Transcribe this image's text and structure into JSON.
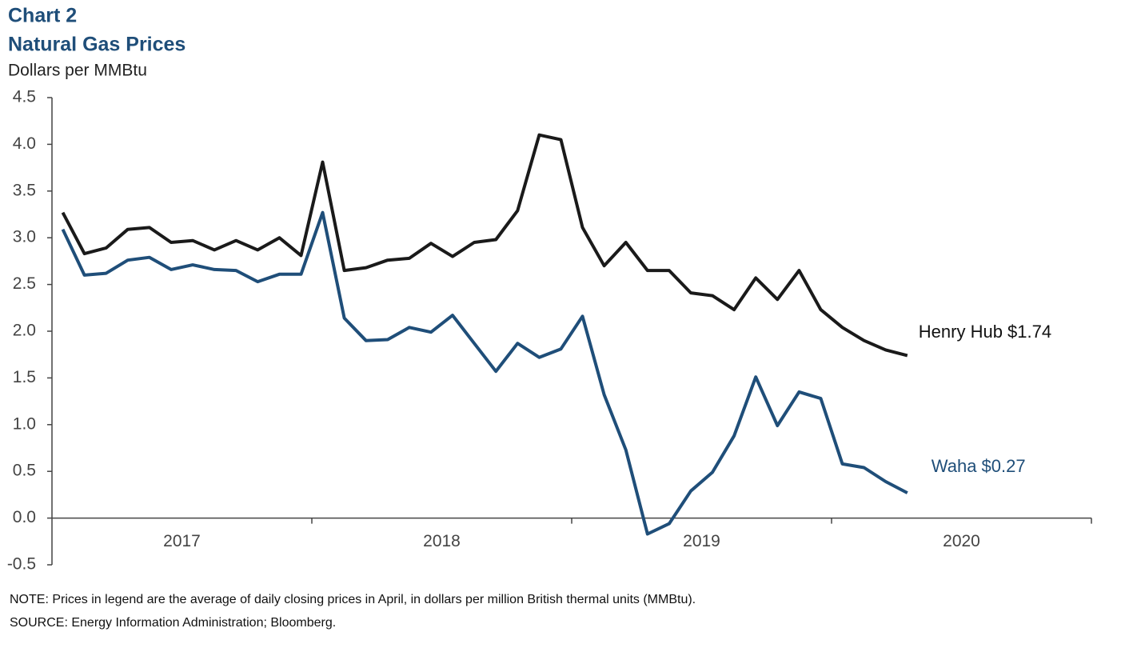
{
  "chart_data": {
    "type": "line",
    "title": "Chart 2",
    "subtitle": "Natural Gas Prices",
    "y_label": "Dollars per MMBtu",
    "note": "NOTE: Prices in legend are the average of daily closing prices in April, in dollars per million British thermal units (MMBtu).",
    "source": "SOURCE: Energy Information Administration;  Bloomberg.",
    "xticks": [
      "2017",
      "2018",
      "2019",
      "2020"
    ],
    "ylim": [
      -0.5,
      4.5
    ],
    "yticks": [
      {
        "value": -0.5,
        "label": "-0.5"
      },
      {
        "value": 0,
        "label": "0.0"
      },
      0.5,
      {
        "value": 1,
        "label": "1.0"
      },
      1.5,
      {
        "value": 2,
        "label": "2.0"
      },
      2.5,
      {
        "value": 3,
        "label": "3.0"
      },
      3.5,
      {
        "value": 4,
        "label": "4.0"
      },
      4.5
    ],
    "series": [
      {
        "name": "Henry Hub $1.74",
        "color": "#1a1a1a",
        "values": [
          3.27,
          2.83,
          2.89,
          3.09,
          3.11,
          2.95,
          2.97,
          2.87,
          2.97,
          2.87,
          3.0,
          2.81,
          3.81,
          2.65,
          2.68,
          2.76,
          2.78,
          2.94,
          2.8,
          2.95,
          2.98,
          3.29,
          4.1,
          4.05,
          3.11,
          2.7,
          2.95,
          2.65,
          2.65,
          2.41,
          2.38,
          2.23,
          2.57,
          2.34,
          2.65,
          2.23,
          2.04,
          1.9,
          1.8,
          1.74
        ]
      },
      {
        "name": "Waha $0.27",
        "color": "#1f4e79",
        "values": [
          3.09,
          2.6,
          2.62,
          2.76,
          2.79,
          2.66,
          2.71,
          2.66,
          2.65,
          2.53,
          2.61,
          2.61,
          3.27,
          2.14,
          1.9,
          1.91,
          2.04,
          1.99,
          2.17,
          1.87,
          1.57,
          1.87,
          1.72,
          1.81,
          2.16,
          1.32,
          0.73,
          -0.17,
          -0.06,
          0.29,
          0.49,
          0.88,
          1.51,
          0.99,
          1.35,
          1.28,
          0.58,
          0.54,
          0.39,
          0.27
        ]
      }
    ]
  }
}
